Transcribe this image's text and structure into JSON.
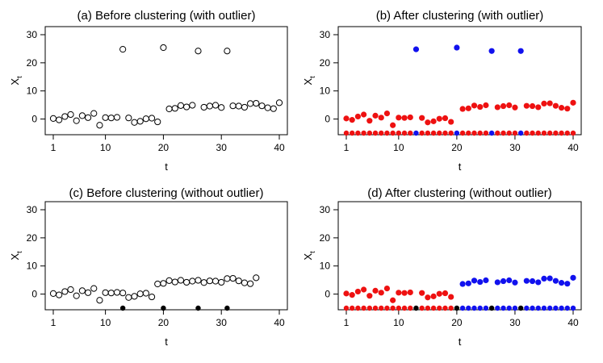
{
  "chart_data": [
    {
      "type": "scatter",
      "title": "(a) Before clustering (with outlier)",
      "xlabel": "t",
      "ylabel": "X",
      "ylabel_sub": "t",
      "xlim": [
        1,
        40
      ],
      "ylim": [
        -5,
        30
      ],
      "xticks": [
        1,
        10,
        20,
        30,
        40
      ],
      "yticks": [
        0,
        10,
        20,
        30
      ],
      "point_style": "open",
      "x": [
        1,
        2,
        3,
        4,
        5,
        6,
        7,
        8,
        9,
        10,
        11,
        12,
        13,
        14,
        15,
        16,
        17,
        18,
        19,
        20,
        21,
        22,
        23,
        24,
        25,
        26,
        27,
        28,
        29,
        30,
        31,
        32,
        33,
        34,
        35,
        36,
        37,
        38,
        39,
        40
      ],
      "values": [
        0.2,
        -0.3,
        0.9,
        1.6,
        -0.6,
        1.2,
        0.5,
        2.0,
        -2.2,
        0.5,
        0.4,
        0.6,
        24.8,
        0.4,
        -1.2,
        -0.8,
        0.1,
        0.3,
        -1.0,
        25.4,
        3.6,
        3.8,
        4.8,
        4.3,
        4.9,
        24.2,
        4.2,
        4.6,
        4.9,
        4.1,
        24.2,
        4.7,
        4.6,
        4.2,
        5.5,
        5.6,
        4.7,
        4.0,
        3.7,
        5.8
      ],
      "bottom_markers": []
    },
    {
      "type": "scatter",
      "title": "(b) After clustering (with outlier)",
      "xlabel": "t",
      "ylabel": "X",
      "ylabel_sub": "t",
      "xlim": [
        1,
        40
      ],
      "ylim": [
        -5,
        30
      ],
      "xticks": [
        1,
        10,
        20,
        30,
        40
      ],
      "yticks": [
        0,
        10,
        20,
        30
      ],
      "point_style": "filled",
      "x": [
        1,
        2,
        3,
        4,
        5,
        6,
        7,
        8,
        9,
        10,
        11,
        12,
        13,
        14,
        15,
        16,
        17,
        18,
        19,
        20,
        21,
        22,
        23,
        24,
        25,
        26,
        27,
        28,
        29,
        30,
        31,
        32,
        33,
        34,
        35,
        36,
        37,
        38,
        39,
        40
      ],
      "values": [
        0.2,
        -0.3,
        0.9,
        1.6,
        -0.6,
        1.2,
        0.5,
        2.0,
        -2.2,
        0.5,
        0.4,
        0.6,
        24.8,
        0.4,
        -1.2,
        -0.8,
        0.1,
        0.3,
        -1.0,
        25.4,
        3.6,
        3.8,
        4.8,
        4.3,
        4.9,
        24.2,
        4.2,
        4.6,
        4.9,
        4.1,
        24.2,
        4.7,
        4.6,
        4.2,
        5.5,
        5.6,
        4.7,
        4.0,
        3.7,
        5.8
      ],
      "cluster_colors": [
        "#ee1111",
        "#1111ee"
      ],
      "clusters": [
        0,
        0,
        0,
        0,
        0,
        0,
        0,
        0,
        0,
        0,
        0,
        0,
        1,
        0,
        0,
        0,
        0,
        0,
        0,
        1,
        0,
        0,
        0,
        0,
        0,
        1,
        0,
        0,
        0,
        0,
        1,
        0,
        0,
        0,
        0,
        0,
        0,
        0,
        0,
        0
      ],
      "bottom_markers": [
        0,
        0,
        0,
        0,
        0,
        0,
        0,
        0,
        0,
        0,
        0,
        0,
        1,
        0,
        0,
        0,
        0,
        0,
        0,
        1,
        0,
        0,
        0,
        0,
        0,
        1,
        0,
        0,
        0,
        0,
        1,
        0,
        0,
        0,
        0,
        0,
        0,
        0,
        0,
        0
      ],
      "bottom_y": -5
    },
    {
      "type": "scatter",
      "title": "(c) Before clustering (without outlier)",
      "xlabel": "t",
      "ylabel": "X",
      "ylabel_sub": "t",
      "xlim": [
        1,
        40
      ],
      "ylim": [
        -5,
        30
      ],
      "xticks": [
        1,
        10,
        20,
        30,
        40
      ],
      "yticks": [
        0,
        10,
        20,
        30
      ],
      "point_style": "open",
      "x": [
        1,
        2,
        3,
        4,
        5,
        6,
        7,
        8,
        9,
        10,
        11,
        12,
        13,
        14,
        15,
        16,
        17,
        18,
        19,
        20,
        21,
        22,
        23,
        24,
        25,
        26,
        27,
        28,
        29,
        30,
        31,
        32,
        33,
        34,
        35,
        36
      ],
      "values": [
        0.2,
        -0.3,
        0.9,
        1.6,
        -0.6,
        1.2,
        0.5,
        2.0,
        -2.2,
        0.5,
        0.4,
        0.6,
        0.4,
        -1.2,
        -0.8,
        0.1,
        0.3,
        -1.0,
        3.6,
        3.8,
        4.8,
        4.3,
        4.9,
        4.2,
        4.6,
        4.9,
        4.1,
        4.7,
        4.6,
        4.2,
        5.5,
        5.6,
        4.7,
        4.0,
        3.7,
        5.8
      ],
      "bottom_markers_x": [
        13,
        20,
        26,
        31
      ],
      "bottom_y": -5
    },
    {
      "type": "scatter",
      "title": "(d) After clustering (without outlier)",
      "xlabel": "t",
      "ylabel": "X",
      "ylabel_sub": "t",
      "xlim": [
        1,
        40
      ],
      "ylim": [
        -5,
        30
      ],
      "xticks": [
        1,
        10,
        20,
        30,
        40
      ],
      "yticks": [
        0,
        10,
        20,
        30
      ],
      "point_style": "filled",
      "x": [
        1,
        2,
        3,
        4,
        5,
        6,
        7,
        8,
        9,
        10,
        11,
        12,
        14,
        15,
        16,
        17,
        18,
        19,
        21,
        22,
        23,
        24,
        25,
        27,
        28,
        29,
        30,
        32,
        33,
        34,
        35,
        36,
        37,
        38,
        39,
        40
      ],
      "values": [
        0.2,
        -0.3,
        0.9,
        1.6,
        -0.6,
        1.2,
        0.5,
        2.0,
        -2.2,
        0.5,
        0.4,
        0.6,
        0.4,
        -1.2,
        -0.8,
        0.1,
        0.3,
        -1.0,
        3.6,
        3.8,
        4.8,
        4.3,
        4.9,
        4.2,
        4.6,
        4.9,
        4.1,
        4.7,
        4.6,
        4.2,
        5.5,
        5.6,
        4.7,
        4.0,
        3.7,
        5.8
      ],
      "cluster_colors": [
        "#ee1111",
        "#1111ee"
      ],
      "clusters": [
        0,
        0,
        0,
        0,
        0,
        0,
        0,
        0,
        0,
        0,
        0,
        0,
        0,
        0,
        0,
        0,
        0,
        0,
        1,
        1,
        1,
        1,
        1,
        1,
        1,
        1,
        1,
        1,
        1,
        1,
        1,
        1,
        1,
        1,
        1,
        1
      ],
      "bottom_row_x": [
        1,
        2,
        3,
        4,
        5,
        6,
        7,
        8,
        9,
        10,
        11,
        12,
        13,
        14,
        15,
        16,
        17,
        18,
        19,
        20,
        21,
        22,
        23,
        24,
        25,
        26,
        27,
        28,
        29,
        30,
        31,
        32,
        33,
        34,
        35,
        36,
        37,
        38,
        39,
        40
      ],
      "bottom_row_colors": [
        0,
        0,
        0,
        0,
        0,
        0,
        0,
        0,
        0,
        0,
        0,
        0,
        2,
        0,
        0,
        0,
        0,
        0,
        0,
        2,
        1,
        1,
        1,
        1,
        1,
        2,
        1,
        1,
        1,
        1,
        2,
        1,
        1,
        1,
        1,
        1,
        1,
        1,
        1,
        1
      ],
      "bottom_y": -5
    }
  ]
}
